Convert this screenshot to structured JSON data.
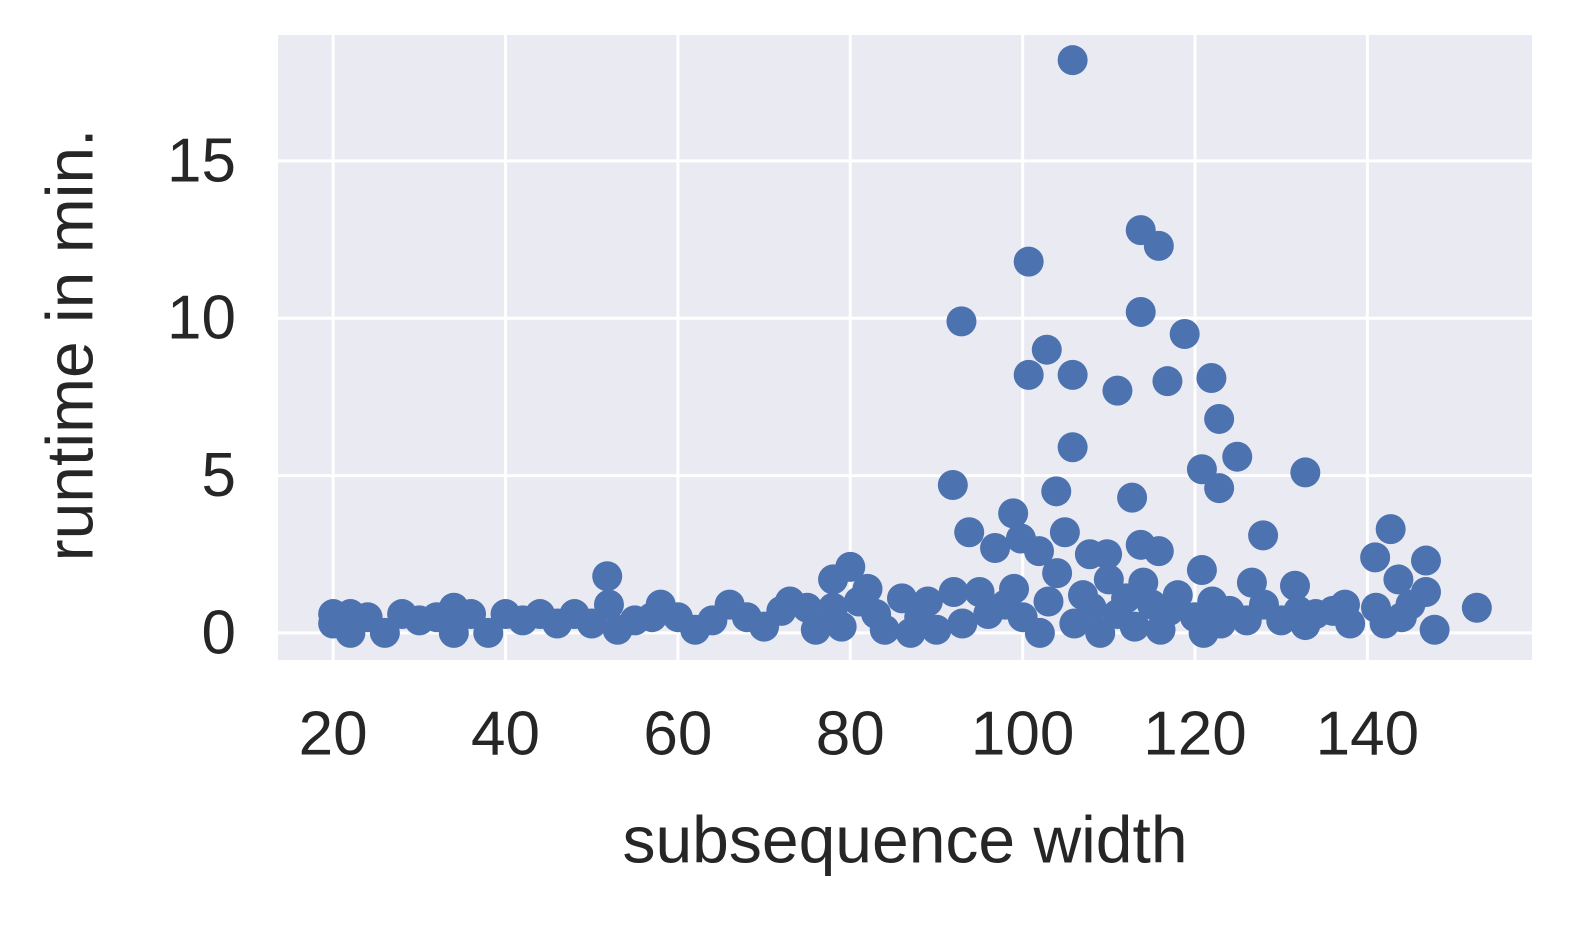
{
  "chart_data": {
    "type": "scatter",
    "x_label": "subsequence width",
    "y_label": "runtime in min.",
    "color": "#4c72b0",
    "grid": true,
    "xlim": [
      13.6,
      159.1
    ],
    "ylim": [
      -0.86,
      19.0
    ],
    "xticks": [
      20,
      40,
      60,
      80,
      100,
      120,
      140
    ],
    "yticks": [
      0,
      5,
      10,
      15
    ],
    "x": [
      105.8,
      113.7,
      115.8,
      100.7,
      92.9,
      113.7,
      118.8,
      102.8,
      100.7,
      105.8,
      111.0,
      116.8,
      121.9,
      122.8,
      105.8,
      124.9,
      120.8,
      132.8,
      91.9,
      103.9,
      112.7,
      122.8,
      98.9,
      93.8,
      104.9,
      127.9,
      142.7,
      113.7,
      115.8,
      96.8,
      101.9,
      107.8,
      109.8,
      99.8,
      120.8,
      140.9,
      146.8,
      143.6,
      146.8,
      152.7,
      147.8,
      51.8,
      80.0,
      78.0,
      126.6,
      131.6,
      137.4,
      132.8,
      20,
      20,
      22,
      22,
      24,
      26,
      28,
      30,
      32,
      34,
      34,
      36,
      38,
      40,
      42,
      44,
      46,
      48,
      50,
      52,
      53,
      55,
      57,
      58,
      60,
      62,
      64,
      66,
      68,
      70,
      72,
      73,
      75,
      76,
      78,
      79,
      81,
      82,
      83,
      84,
      86,
      87,
      88,
      89,
      90,
      92,
      93,
      95,
      96,
      98,
      99,
      100,
      102,
      103,
      104,
      106,
      107,
      108,
      109,
      110,
      111,
      112,
      113,
      114,
      115,
      116,
      117,
      118,
      120,
      121,
      122,
      123,
      124,
      126,
      128,
      130,
      132,
      134,
      136,
      138,
      141,
      142,
      144,
      145
    ],
    "values": [
      18.2,
      12.8,
      12.3,
      11.8,
      9.9,
      10.2,
      9.5,
      9.0,
      8.2,
      8.2,
      7.7,
      8.0,
      8.1,
      6.8,
      5.9,
      5.6,
      5.2,
      5.1,
      4.7,
      4.5,
      4.3,
      4.6,
      3.8,
      3.2,
      3.2,
      3.1,
      3.3,
      2.8,
      2.6,
      2.7,
      2.6,
      2.5,
      2.5,
      3.0,
      2.0,
      2.4,
      2.3,
      1.7,
      1.3,
      0.8,
      0.1,
      1.8,
      2.1,
      1.7,
      1.6,
      1.5,
      0.9,
      0.25,
      0.6,
      0.3,
      0.0,
      0.6,
      0.5,
      0.0,
      0.6,
      0.4,
      0.5,
      0.8,
      0.0,
      0.6,
      0.0,
      0.6,
      0.4,
      0.6,
      0.3,
      0.6,
      0.3,
      0.9,
      0.1,
      0.4,
      0.5,
      0.9,
      0.5,
      0.1,
      0.4,
      0.9,
      0.5,
      0.2,
      0.7,
      1.0,
      0.8,
      0.1,
      0.8,
      0.2,
      1.0,
      1.4,
      0.6,
      0.1,
      1.1,
      0.0,
      0.5,
      1.0,
      0.1,
      1.3,
      0.3,
      1.3,
      0.6,
      0.9,
      1.4,
      0.5,
      0.0,
      1.0,
      1.9,
      0.3,
      1.2,
      0.8,
      0.0,
      1.7,
      0.6,
      1.1,
      0.2,
      1.6,
      0.9,
      0.1,
      0.7,
      1.2,
      0.5,
      0.0,
      1.0,
      0.3,
      0.7,
      0.4,
      0.9,
      0.4,
      0.7,
      0.6,
      0.7,
      0.3,
      0.8,
      0.3,
      0.5,
      0.9
    ]
  }
}
